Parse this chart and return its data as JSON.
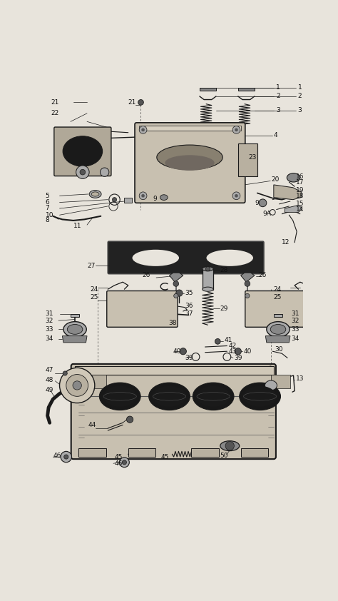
{
  "bg_color": "#e8e4dc",
  "line_color": "#1a1a1a",
  "text_color": "#111111",
  "figsize": [
    4.74,
    8.42
  ],
  "dpi": 100,
  "xlim": [
    0,
    474
  ],
  "ylim": [
    0,
    842
  ]
}
